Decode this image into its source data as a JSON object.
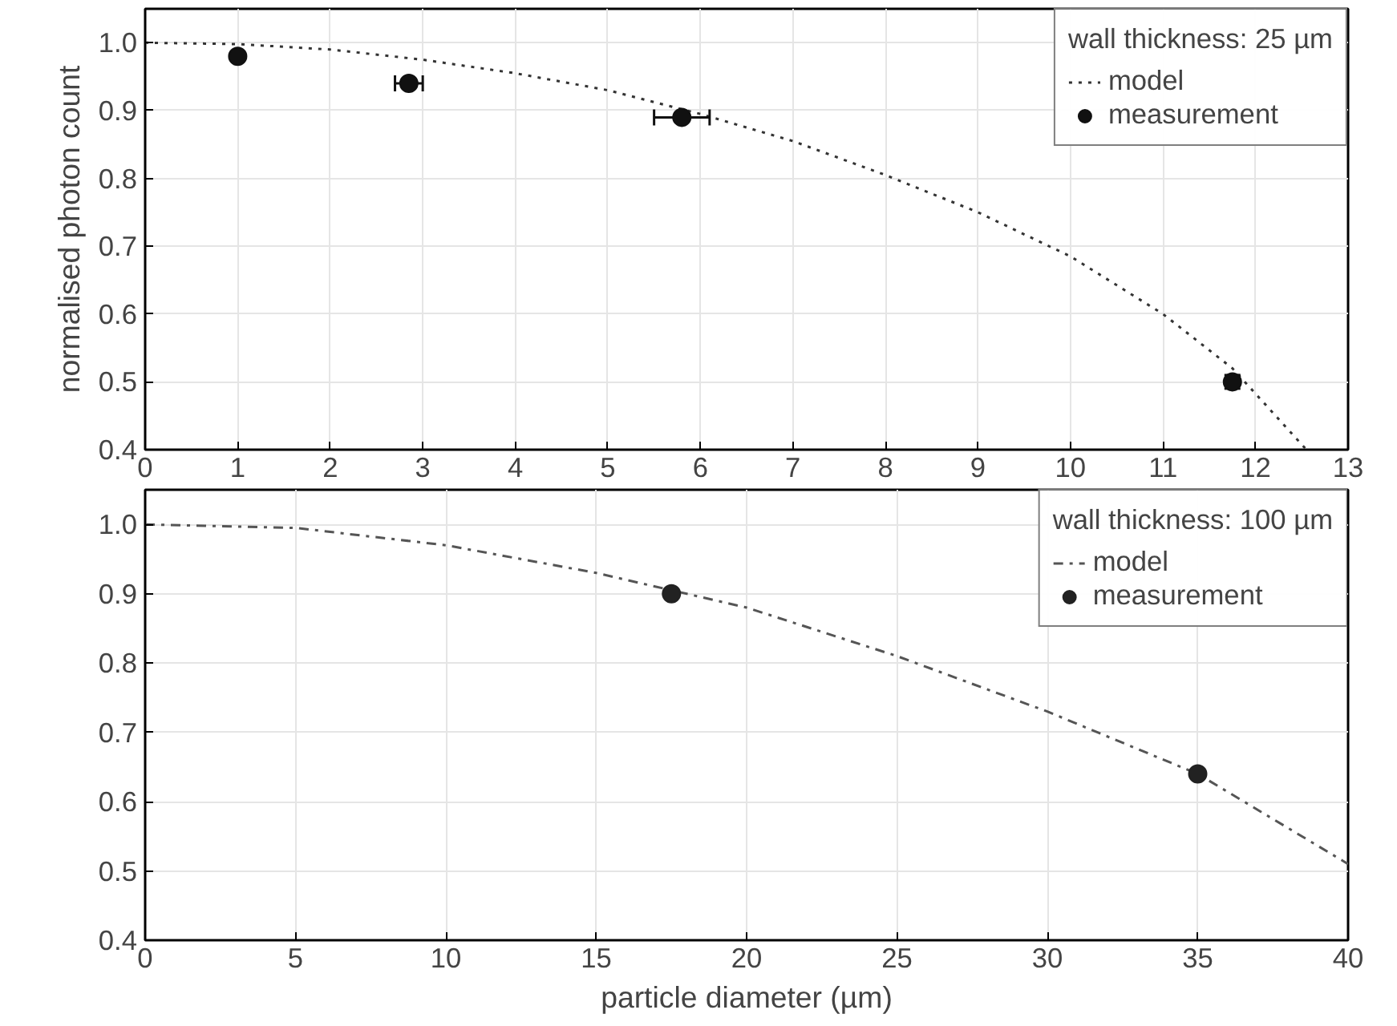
{
  "chart_data": [
    {
      "type": "line",
      "ylabel": "normalised photon count",
      "legend_title": "wall thickness: 25 µm",
      "xlim": [
        0,
        13
      ],
      "ylim": [
        0.4,
        1.05
      ],
      "xticks": [
        0,
        1,
        2,
        3,
        4,
        5,
        6,
        7,
        8,
        9,
        10,
        11,
        12,
        13
      ],
      "yticks": [
        0.4,
        0.5,
        0.6,
        0.7,
        0.8,
        0.9,
        {
          "value": 1,
          "label": "1.0"
        }
      ],
      "grid": true,
      "legend": "top right",
      "series": [
        {
          "name": "model",
          "line_style": "dotted",
          "color": "#333333",
          "x": [
            0,
            1,
            2,
            3,
            4,
            5,
            6,
            7,
            8,
            9,
            10,
            11,
            11.75,
            12.55
          ],
          "values": [
            1.0,
            0.998,
            0.99,
            0.975,
            0.955,
            0.93,
            0.895,
            0.855,
            0.805,
            0.75,
            0.685,
            0.6,
            0.52,
            0.4
          ]
        },
        {
          "name": "measurement",
          "type": "scatter",
          "marker": "circle",
          "color": "#111111",
          "x": [
            1,
            2.85,
            5.8,
            11.75
          ],
          "values": [
            0.98,
            0.94,
            0.89,
            0.5
          ],
          "xerrors": [
            null,
            0.15,
            0.3,
            null
          ],
          "errors": [
            null,
            null,
            null,
            0.01
          ]
        }
      ]
    },
    {
      "type": "line",
      "xlabel": "particle diameter (µm)",
      "legend_title": "wall thickness: 100 µm",
      "xlim": [
        0,
        40
      ],
      "ylim": [
        0.4,
        1.05
      ],
      "xticks": [
        0,
        5,
        10,
        15,
        20,
        25,
        30,
        35,
        40
      ],
      "yticks": [
        0.4,
        0.5,
        0.6,
        0.7,
        0.8,
        0.9,
        {
          "value": 1,
          "label": "1.0"
        }
      ],
      "grid": true,
      "legend": "top right",
      "series": [
        {
          "name": "model",
          "line_style": "dashdot",
          "color": "#555555",
          "x": [
            0,
            5,
            10,
            15,
            17.5,
            20,
            25,
            30,
            35,
            40
          ],
          "values": [
            1.0,
            0.995,
            0.97,
            0.93,
            0.905,
            0.88,
            0.81,
            0.73,
            0.64,
            0.51
          ]
        },
        {
          "name": "measurement",
          "type": "scatter",
          "marker": "circle",
          "color": "#222222",
          "x": [
            17.5,
            35
          ],
          "values": [
            0.9,
            0.64
          ]
        }
      ]
    }
  ]
}
